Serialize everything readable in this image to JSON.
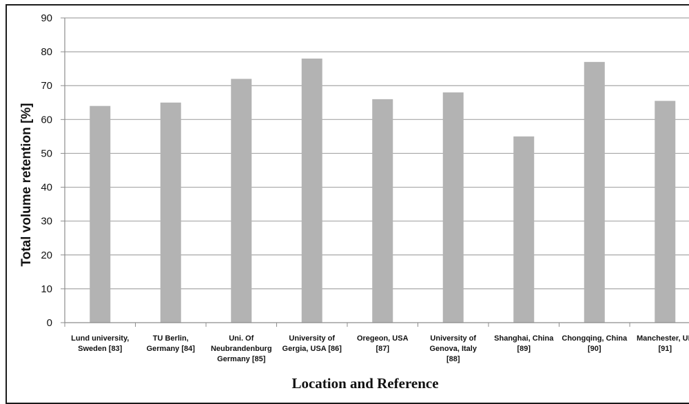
{
  "chart_data": {
    "type": "bar",
    "title": "",
    "xlabel": "Location and Reference",
    "ylabel": "Total volume retention [%]",
    "ylim": [
      0,
      90
    ],
    "yticks": [
      "0",
      "10",
      "20",
      "30",
      "40",
      "50",
      "60",
      "70",
      "80",
      "90"
    ],
    "grid": true,
    "categories": [
      [
        "Lund university,",
        "Sweden [83]"
      ],
      [
        "TU Berlin,",
        "Germany [84]"
      ],
      [
        "Uni. Of",
        "Neubrandenburg",
        "Germany [85]"
      ],
      [
        "University of",
        "Gergia, USA [86]"
      ],
      [
        "Oregeon, USA",
        "[87]"
      ],
      [
        "University of",
        "Genova, Italy",
        "[88]"
      ],
      [
        "Shanghai,  China",
        "[89]"
      ],
      [
        "Chongqing, China",
        "[90]"
      ],
      [
        "Manchester, UK",
        "[91]"
      ]
    ],
    "values": [
      64,
      65,
      72,
      78,
      66,
      68,
      55,
      77,
      65.5
    ],
    "colors": {
      "bar": "#b3b3b3",
      "grid": "#a6a6a6",
      "axis": "#8c8c8c"
    }
  }
}
